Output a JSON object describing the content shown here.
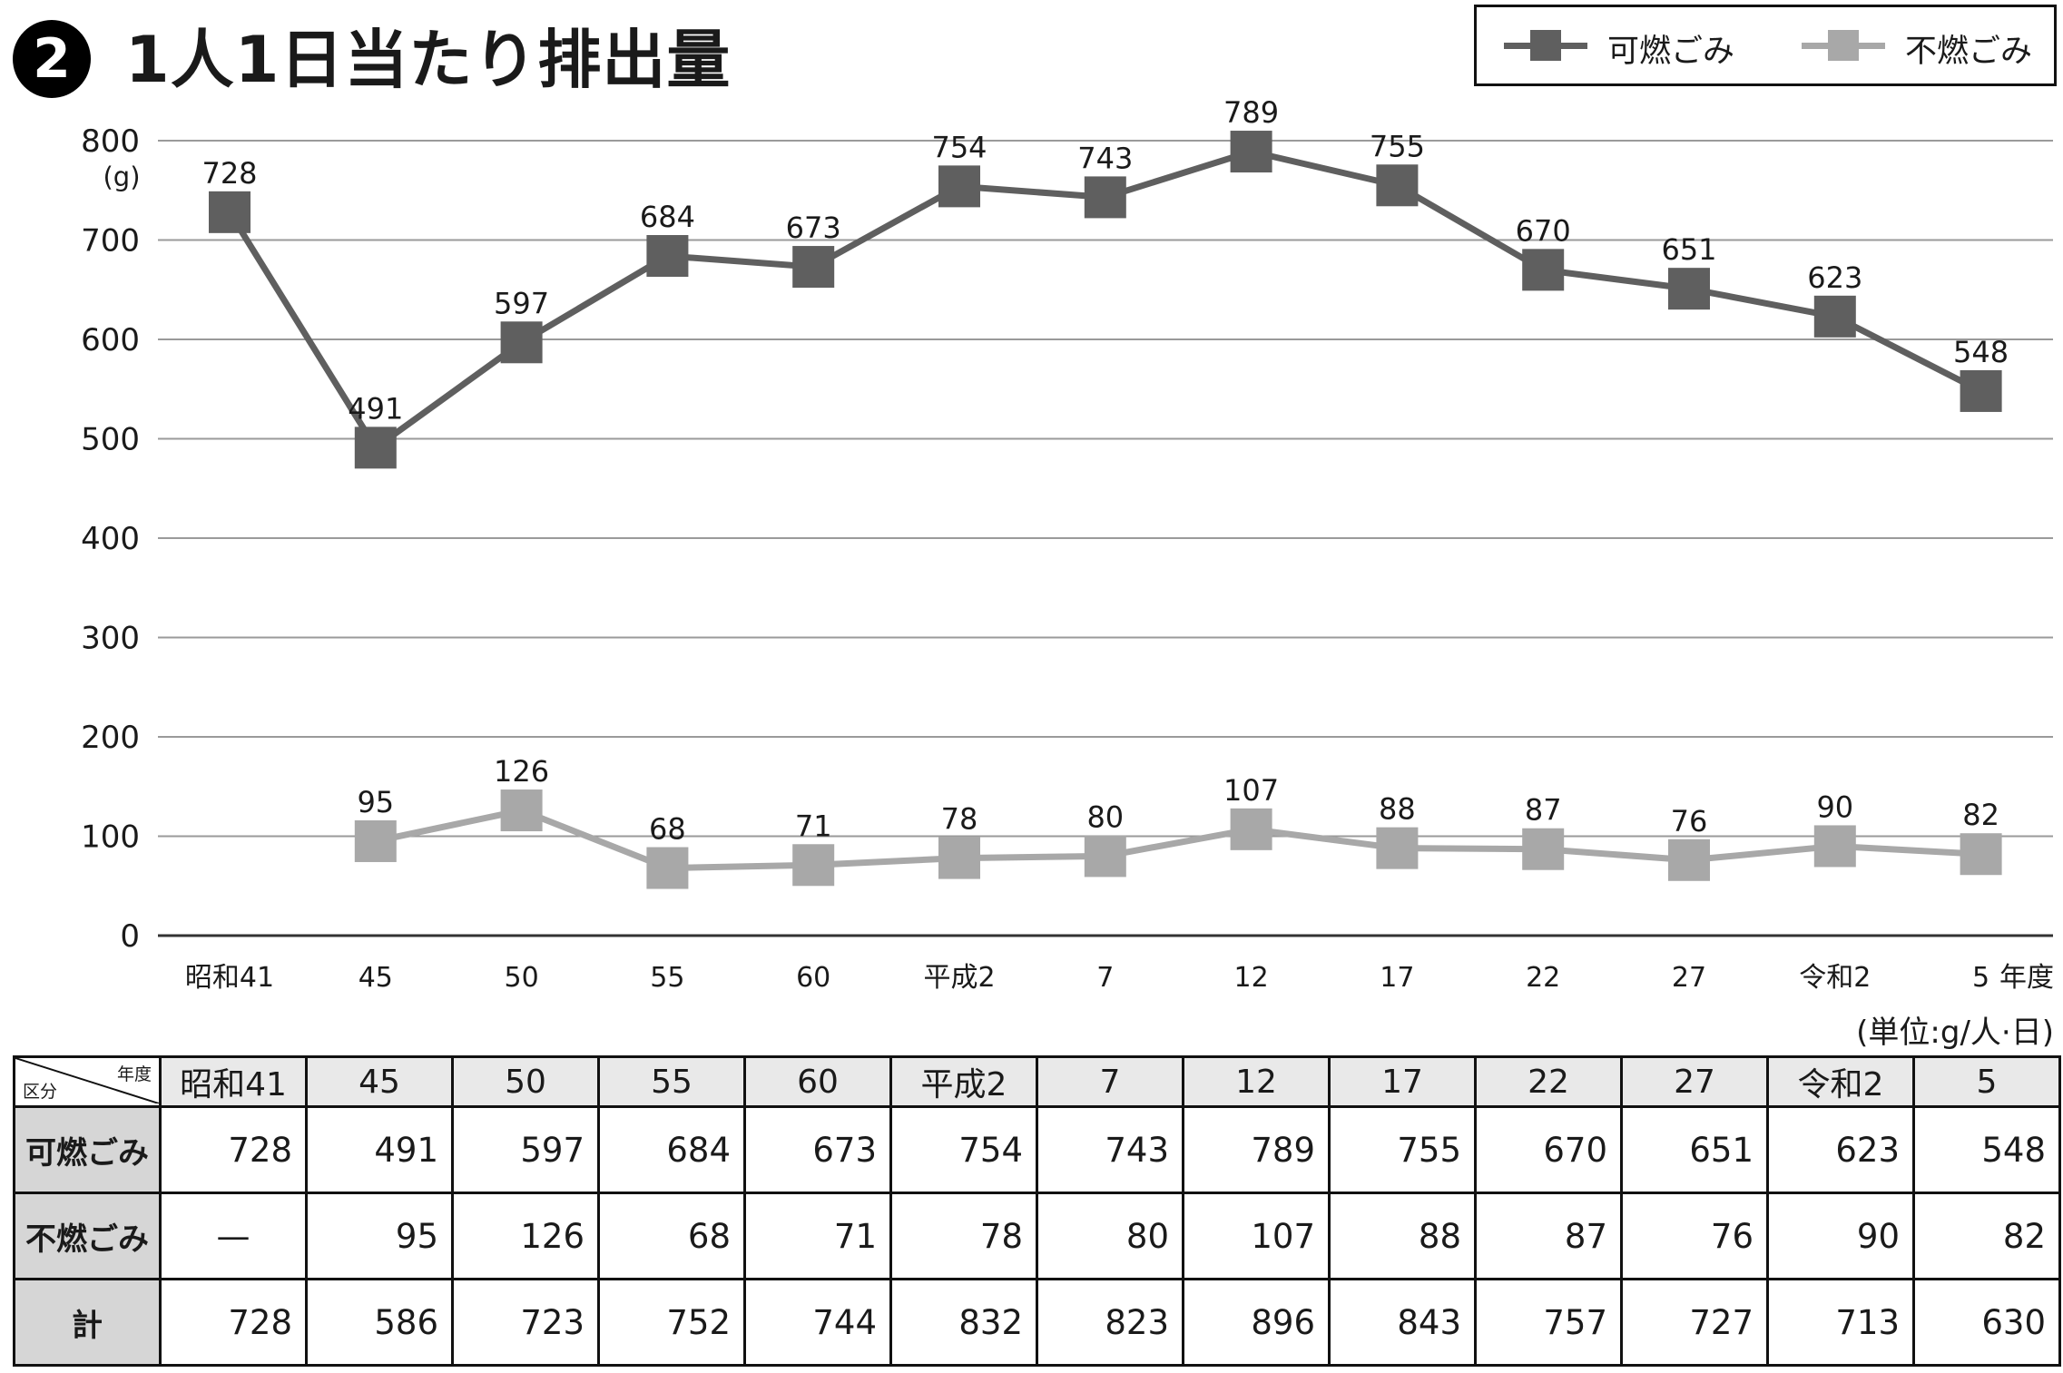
{
  "title": {
    "number": "2",
    "text": "1人1日当たり排出量"
  },
  "unit_note": "(単位:g/人·日)",
  "colors": {
    "combustible": "#5f5f5f",
    "noncombustible": "#a8a8a8",
    "header_bg": "#e9e9e9",
    "rowhead_bg": "#d6d6d6"
  },
  "chart_data": {
    "type": "line",
    "categories": [
      "昭和41",
      "45",
      "50",
      "55",
      "60",
      "平成2",
      "7",
      "12",
      "17",
      "22",
      "27",
      "令和2",
      "5"
    ],
    "x_suffix": "年度",
    "ylabel": "(g)",
    "ylim": [
      0,
      800
    ],
    "yticks": [
      0,
      100,
      200,
      300,
      400,
      500,
      600,
      700,
      800
    ],
    "grid": true,
    "legend_position": "top-right",
    "series": [
      {
        "name": "可燃ごみ",
        "values": [
          728,
          491,
          597,
          684,
          673,
          754,
          743,
          789,
          755,
          670,
          651,
          623,
          548
        ]
      },
      {
        "name": "不燃ごみ",
        "values": [
          null,
          95,
          126,
          68,
          71,
          78,
          80,
          107,
          88,
          87,
          76,
          90,
          82
        ]
      }
    ]
  },
  "table": {
    "corner_top": "年度",
    "corner_bottom": "区分",
    "headers": [
      "昭和41",
      "45",
      "50",
      "55",
      "60",
      "平成2",
      "7",
      "12",
      "17",
      "22",
      "27",
      "令和2",
      "5"
    ],
    "rows": [
      {
        "label": "可燃ごみ",
        "cells": [
          "728",
          "491",
          "597",
          "684",
          "673",
          "754",
          "743",
          "789",
          "755",
          "670",
          "651",
          "623",
          "548"
        ]
      },
      {
        "label": "不燃ごみ",
        "cells": [
          "—",
          "95",
          "126",
          "68",
          "71",
          "78",
          "80",
          "107",
          "88",
          "87",
          "76",
          "90",
          "82"
        ]
      },
      {
        "label": "計",
        "cells": [
          "728",
          "586",
          "723",
          "752",
          "744",
          "832",
          "823",
          "896",
          "843",
          "757",
          "727",
          "713",
          "630"
        ]
      }
    ]
  }
}
